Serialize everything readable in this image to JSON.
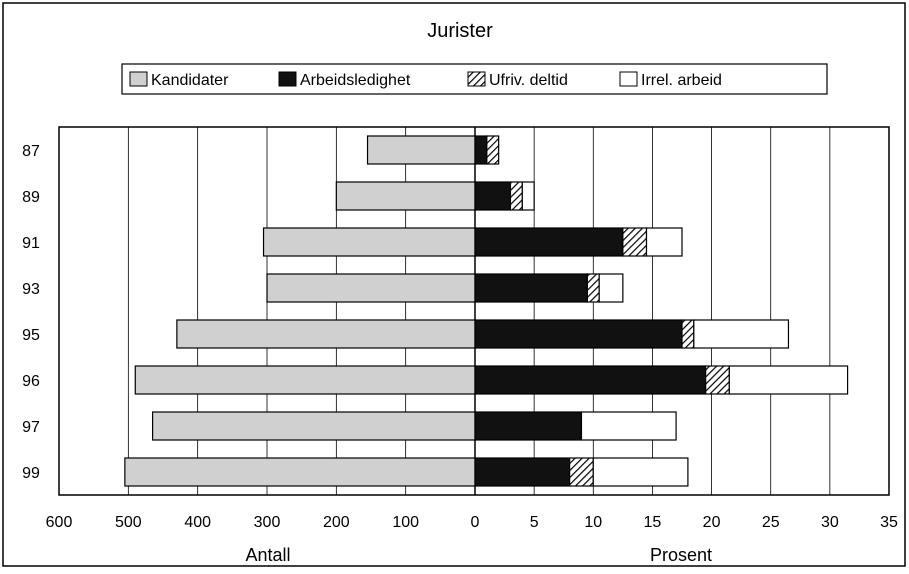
{
  "chart_data": {
    "type": "bar",
    "title": "Jurister",
    "categories": [
      "87",
      "89",
      "91",
      "93",
      "95",
      "96",
      "97",
      "99"
    ],
    "left_panel": {
      "xlabel": "Antall",
      "xlim": [
        600,
        0
      ],
      "ticks": [
        "600",
        "500",
        "400",
        "300",
        "200",
        "100",
        "0"
      ],
      "series": [
        {
          "name": "Kandidater",
          "color": "#d0d0d0",
          "values": [
            155,
            200,
            305,
            300,
            430,
            490,
            465,
            505
          ]
        }
      ]
    },
    "right_panel": {
      "xlabel": "Prosent",
      "xlim": [
        0,
        35
      ],
      "ticks": [
        "5",
        "10",
        "15",
        "20",
        "25",
        "30",
        "35"
      ],
      "stacked": true,
      "series": [
        {
          "name": "Arbeidsledighet",
          "color": "#111111",
          "values": [
            1,
            3,
            12.5,
            9.5,
            17.5,
            19.5,
            9,
            8
          ]
        },
        {
          "name": "Ufriv. deltid",
          "color": "hatch",
          "values": [
            1,
            1,
            2,
            1,
            1,
            2,
            0,
            2
          ]
        },
        {
          "name": "Irrel. arbeid",
          "color": "#ffffff",
          "values": [
            0,
            1,
            3,
            2,
            8,
            10,
            8,
            8
          ]
        }
      ]
    },
    "legend": {
      "placement": "top-center",
      "items": [
        "Kandidater",
        "Arbeidsledighet",
        "Ufriv. deltid",
        "Irrel. arbeid"
      ]
    },
    "grid": true
  }
}
